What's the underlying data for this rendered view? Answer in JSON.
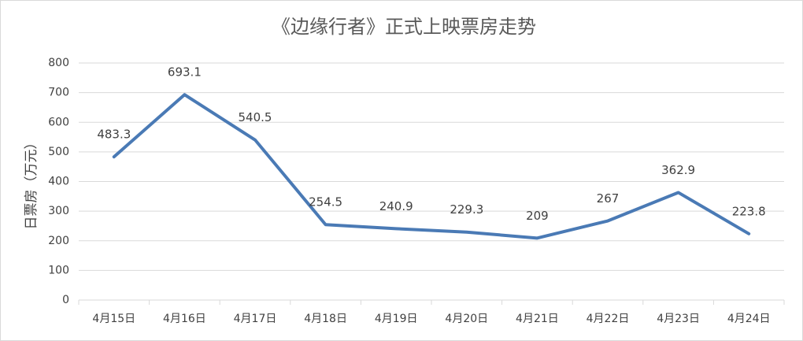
{
  "chart_data": {
    "type": "line",
    "title": "《边缘行者》正式上映票房走势",
    "y_label": "日票房（万元）",
    "categories": [
      "4月15日",
      "4月16日",
      "4月17日",
      "4月18日",
      "4月19日",
      "4月20日",
      "4月21日",
      "4月22日",
      "4月23日",
      "4月24日"
    ],
    "values": [
      483.3,
      693.1,
      540.5,
      254.5,
      240.9,
      229.3,
      209,
      267,
      362.9,
      223.8
    ],
    "color": "#4a7ab5",
    "ylim": [
      0,
      800
    ],
    "yticks": [
      0,
      100,
      200,
      300,
      400,
      500,
      600,
      700,
      800
    ],
    "grid": true,
    "data_labels": true
  }
}
